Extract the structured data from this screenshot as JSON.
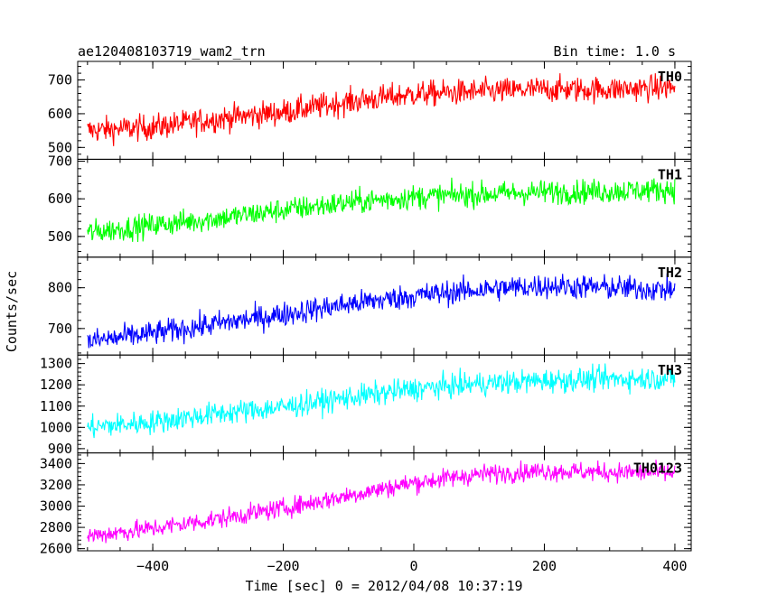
{
  "chart_data": {
    "type": "line",
    "title_left": "ae120408103719_wam2_trn",
    "title_right": "Bin time: 1.0 s",
    "xlabel": "Time [sec] 0 = 2012/04/08 10:37:19",
    "ylabel": "Counts/sec",
    "xlim": [
      -515,
      425
    ],
    "x_ticks": [
      -400,
      -200,
      0,
      200,
      400
    ],
    "x_range": [
      -500,
      400
    ],
    "panels": [
      {
        "name": "TH0",
        "color": "#ff0000",
        "ylim": [
          465,
          755
        ],
        "y_ticks": [
          500,
          600,
          700
        ],
        "noise": 38,
        "trend": [
          [
            -500,
            550
          ],
          [
            -400,
            560
          ],
          [
            -300,
            585
          ],
          [
            -200,
            605
          ],
          [
            -100,
            635
          ],
          [
            0,
            658
          ],
          [
            100,
            665
          ],
          [
            200,
            672
          ],
          [
            300,
            672
          ],
          [
            400,
            678
          ]
        ]
      },
      {
        "name": "TH1",
        "color": "#00ff00",
        "ylim": [
          445,
          705
        ],
        "y_ticks": [
          500,
          600,
          700
        ],
        "noise": 32,
        "trend": [
          [
            -500,
            510
          ],
          [
            -400,
            530
          ],
          [
            -300,
            548
          ],
          [
            -200,
            570
          ],
          [
            -100,
            590
          ],
          [
            0,
            605
          ],
          [
            100,
            612
          ],
          [
            200,
            618
          ],
          [
            300,
            620
          ],
          [
            400,
            625
          ]
        ]
      },
      {
        "name": "TH2",
        "color": "#0000ff",
        "ylim": [
          635,
          875
        ],
        "y_ticks": [
          700,
          800
        ],
        "noise": 30,
        "trend": [
          [
            -500,
            668
          ],
          [
            -400,
            688
          ],
          [
            -300,
            712
          ],
          [
            -200,
            735
          ],
          [
            -100,
            760
          ],
          [
            0,
            780
          ],
          [
            100,
            795
          ],
          [
            200,
            805
          ],
          [
            300,
            800
          ],
          [
            400,
            795
          ]
        ]
      },
      {
        "name": "TH3",
        "color": "#00ffff",
        "ylim": [
          880,
          1340
        ],
        "y_ticks": [
          900,
          1000,
          1100,
          1200,
          1300
        ],
        "noise": 55,
        "trend": [
          [
            -500,
            1000
          ],
          [
            -400,
            1025
          ],
          [
            -300,
            1065
          ],
          [
            -200,
            1095
          ],
          [
            -100,
            1140
          ],
          [
            0,
            1180
          ],
          [
            100,
            1205
          ],
          [
            200,
            1220
          ],
          [
            300,
            1228
          ],
          [
            400,
            1230
          ]
        ]
      },
      {
        "name": "TH0123",
        "color": "#ff00ff",
        "ylim": [
          2580,
          3500
        ],
        "y_ticks": [
          2600,
          2800,
          3000,
          3200,
          3400
        ],
        "noise": 90,
        "trend": [
          [
            -500,
            2720
          ],
          [
            -400,
            2790
          ],
          [
            -300,
            2880
          ],
          [
            -200,
            2980
          ],
          [
            -100,
            3100
          ],
          [
            0,
            3220
          ],
          [
            100,
            3300
          ],
          [
            200,
            3330
          ],
          [
            300,
            3320
          ],
          [
            400,
            3310
          ]
        ]
      }
    ]
  }
}
